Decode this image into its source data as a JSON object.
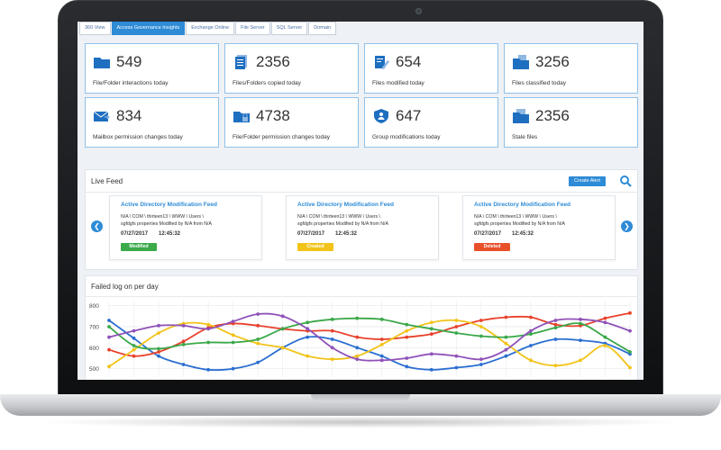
{
  "tabs": [
    "360 View",
    "Access Governance Insights",
    "Exchange Online",
    "File Server",
    "SQL Server",
    "Domain"
  ],
  "active_tab": "Access Governance Insights",
  "stats": [
    {
      "value": "549",
      "label": "File/Folder interactions today",
      "icon": "folder-icon"
    },
    {
      "value": "2356",
      "label": "Files/Folders copied today",
      "icon": "document-copy-icon"
    },
    {
      "value": "654",
      "label": "Files modified today",
      "icon": "edit-document-icon"
    },
    {
      "value": "3256",
      "label": "Files classified today",
      "icon": "classified-folder-icon"
    },
    {
      "value": "834",
      "label": "Mailbox permission changes today",
      "icon": "mailbox-icon"
    },
    {
      "value": "4738",
      "label": "File/Folder permission changes today",
      "icon": "permission-folder-icon"
    },
    {
      "value": "647",
      "label": "Group modifications today",
      "icon": "group-shield-icon"
    },
    {
      "value": "2356",
      "label": "Stale files",
      "icon": "stale-folder-icon"
    }
  ],
  "live_feed": {
    "title": "Live Feed",
    "create_alert_label": "Create Alert",
    "cards": [
      {
        "title": "Active Directory Modification Feed",
        "lines": [
          "N/A \\ COM \\ thirteen13 \\ WWW \\ Users \\",
          "sgfdgfs properties Modified by N/A from N/A"
        ],
        "date": "07/27/2017",
        "time": "12:45:32",
        "status": "Modified",
        "status_color": "#3aaa4a"
      },
      {
        "title": "Active Directory Modification Feed",
        "lines": [
          "N/A \\ COM \\ thirteen13 \\ WWW \\ Users \\",
          "sgfdgfs properties Modified by N/A from N/A"
        ],
        "date": "07/27/2017",
        "time": "12:45:32",
        "status": "Created",
        "status_color": "#f2c318"
      },
      {
        "title": "Active Directory Modification Feed",
        "lines": [
          "N/A \\ COM \\ thirteen13 \\ WWW \\ Users \\",
          "sgfdgfs properties Modified by N/A from N/A"
        ],
        "date": "07/27/2017",
        "time": "12:45:32",
        "status": "Deleted",
        "status_color": "#e8502a"
      }
    ]
  },
  "chart_panel_title": "Failed log on per day",
  "chart_data": {
    "type": "line",
    "title": "Failed log on per day",
    "ylim": [
      460,
      820
    ],
    "yticks": [
      500,
      600,
      700,
      800
    ],
    "grid": true,
    "n_points": 22,
    "series": [
      {
        "color": "#2a6ed1",
        "values": [
          730,
          645,
          560,
          520,
          495,
          500,
          530,
          600,
          650,
          640,
          600,
          560,
          510,
          495,
          505,
          520,
          560,
          610,
          640,
          635,
          620,
          570
        ]
      },
      {
        "color": "#e8412b",
        "values": [
          590,
          560,
          580,
          630,
          695,
          715,
          705,
          690,
          680,
          680,
          650,
          640,
          650,
          665,
          700,
          730,
          745,
          745,
          710,
          705,
          740,
          765
        ]
      },
      {
        "color": "#f2c318",
        "values": [
          510,
          590,
          670,
          715,
          710,
          660,
          620,
          600,
          560,
          545,
          560,
          615,
          680,
          720,
          730,
          700,
          620,
          540,
          515,
          540,
          610,
          505
        ]
      },
      {
        "color": "#3aa849",
        "values": [
          700,
          610,
          595,
          615,
          625,
          625,
          640,
          690,
          720,
          735,
          740,
          735,
          710,
          690,
          670,
          655,
          650,
          665,
          695,
          715,
          650,
          580
        ]
      },
      {
        "color": "#8f52b8",
        "values": [
          650,
          680,
          705,
          705,
          690,
          725,
          760,
          750,
          690,
          600,
          545,
          540,
          550,
          570,
          560,
          545,
          590,
          680,
          730,
          735,
          720,
          680
        ]
      }
    ]
  }
}
